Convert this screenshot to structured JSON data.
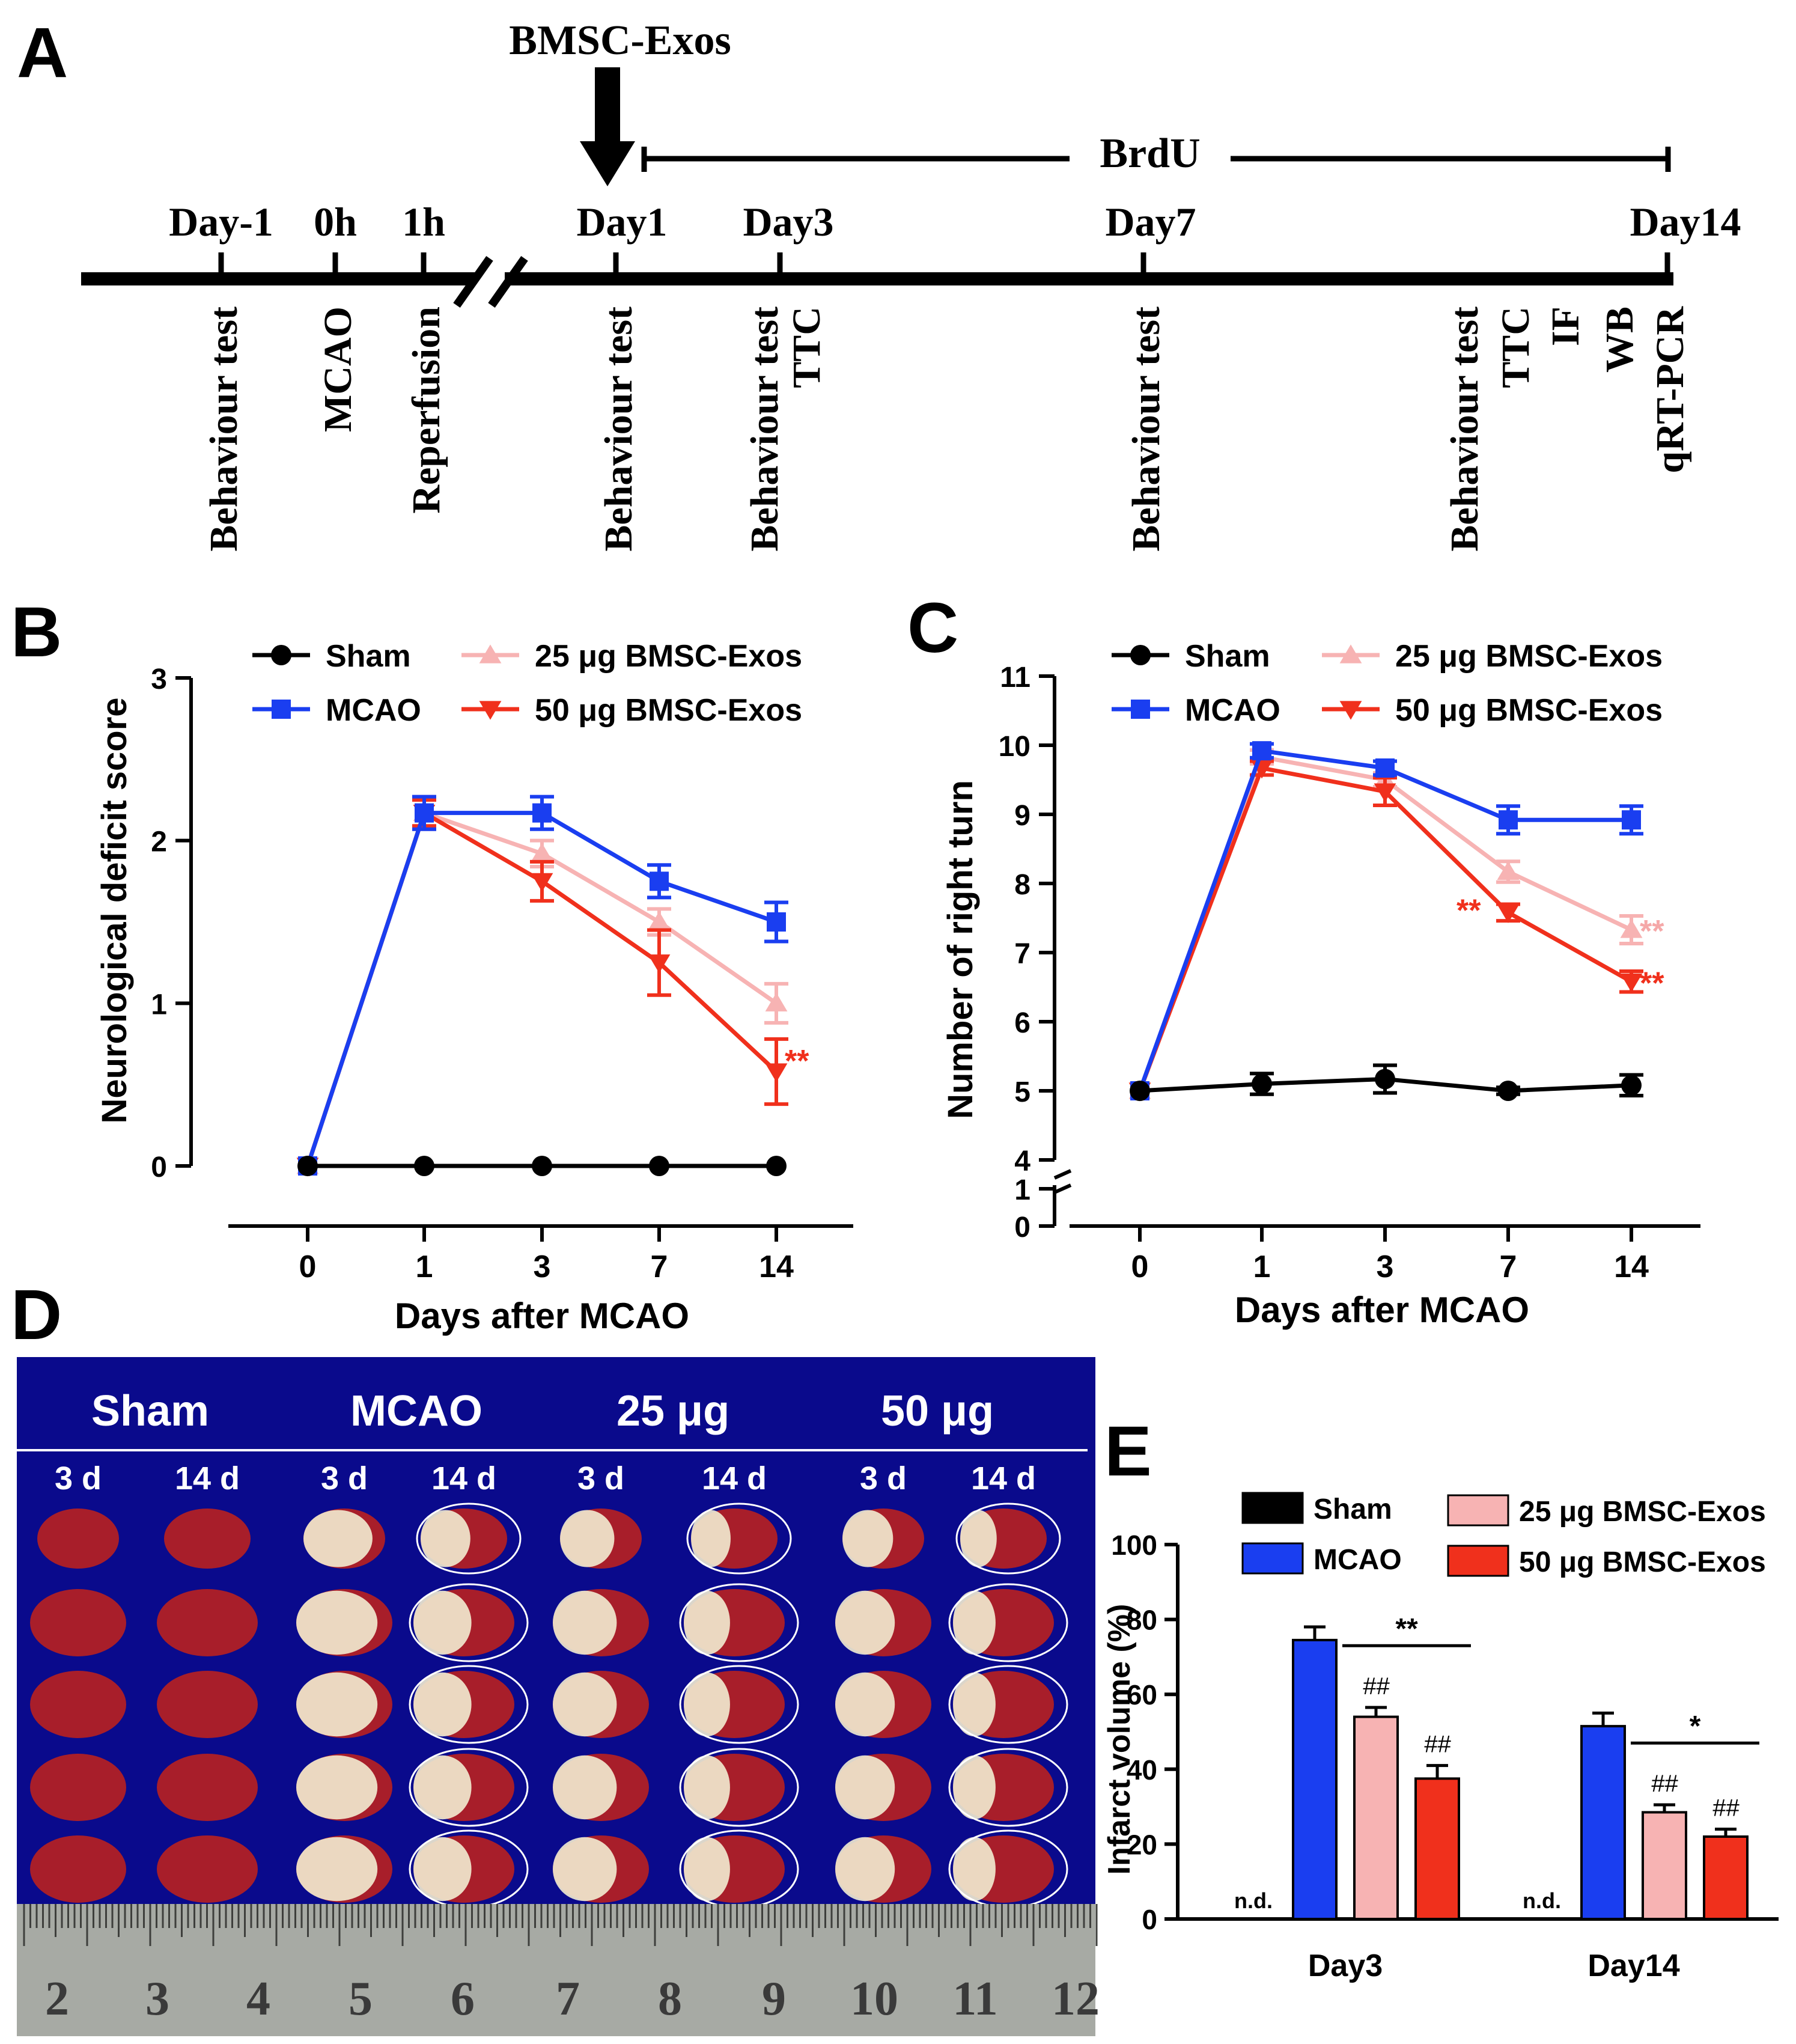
{
  "colors": {
    "sham": "#000000",
    "mcao": "#1a3ef0",
    "exo25": "#f7b3b3",
    "exo50": "#f0301c",
    "sig25": "#f5a8a8",
    "photo_bg": "#0a0a8c",
    "tissue_red": "#a81e2a",
    "tissue_pale": "#f2ecd2"
  },
  "panel_labels": {
    "A": "A",
    "B": "B",
    "C": "C",
    "D": "D",
    "E": "E"
  },
  "timeline": {
    "injection_label": "BMSC-Exos",
    "brdu_label": "BrdU",
    "time_points": [
      {
        "label": "Day-1",
        "events": [
          "Behaviour test"
        ]
      },
      {
        "label": "0h",
        "events": [
          "MCAO"
        ]
      },
      {
        "label": "1h",
        "events": [
          "Reperfusion"
        ]
      },
      {
        "label": "Day1",
        "events": [
          "Behaviour test"
        ]
      },
      {
        "label": "Day3",
        "events": [
          "Behaviour test",
          "TTC"
        ]
      },
      {
        "label": "Day7",
        "events": [
          "Behaviour test"
        ]
      },
      {
        "label": "Day14",
        "events": [
          "Behaviour test",
          "TTC",
          "IF",
          "WB",
          "qRT-PCR"
        ]
      }
    ]
  },
  "legend_lines": [
    "Sham",
    "MCAO",
    "25 μg BMSC-Exos",
    "50 μg BMSC-Exos"
  ],
  "legend_bars": [
    "Sham",
    "MCAO",
    "25 μg BMSC-Exos",
    "50 μg BMSC-Exos"
  ],
  "chart_data": [
    {
      "id": "B",
      "type": "line",
      "title": "",
      "xlabel": "Days after MCAO",
      "ylabel": "Neurological deficit score",
      "categories": [
        "0",
        "1",
        "3",
        "7",
        "14"
      ],
      "ylim": [
        0,
        3
      ],
      "yticks": [
        "0",
        "1",
        "2",
        "3"
      ],
      "series": [
        {
          "name": "Sham",
          "values": [
            0,
            0,
            0,
            0,
            0
          ],
          "errors": [
            0,
            0,
            0,
            0,
            0
          ]
        },
        {
          "name": "MCAO",
          "values": [
            0,
            2.17,
            2.17,
            1.75,
            1.5
          ],
          "errors": [
            0,
            0.1,
            0.1,
            0.1,
            0.12
          ]
        },
        {
          "name": "25 μg BMSC-Exos",
          "values": [
            0,
            2.17,
            1.92,
            1.5,
            1.0
          ],
          "errors": [
            0,
            0.1,
            0.08,
            0.08,
            0.12
          ]
        },
        {
          "name": "50 μg BMSC-Exos",
          "values": [
            0,
            2.17,
            1.75,
            1.25,
            0.58
          ],
          "errors": [
            0,
            0.08,
            0.12,
            0.2,
            0.2
          ]
        }
      ],
      "annotations": [
        {
          "series": "50 μg BMSC-Exos",
          "index": 4,
          "text": "**"
        }
      ]
    },
    {
      "id": "C",
      "type": "line",
      "title": "",
      "xlabel": "Days after MCAO",
      "ylabel": "Number of  right turn",
      "categories": [
        "0",
        "1",
        "3",
        "7",
        "14"
      ],
      "ylim": [
        0,
        11
      ],
      "axis_break": [
        1,
        4
      ],
      "yticks": [
        "0",
        "1",
        "4",
        "5",
        "6",
        "7",
        "8",
        "9",
        "10",
        "11"
      ],
      "series": [
        {
          "name": "Sham",
          "values": [
            5,
            5.1,
            5.17,
            5.0,
            5.08
          ],
          "errors": [
            0,
            0.15,
            0.2,
            0.05,
            0.15
          ]
        },
        {
          "name": "MCAO",
          "values": [
            5,
            9.92,
            9.67,
            8.92,
            8.92
          ],
          "errors": [
            0,
            0.1,
            0.1,
            0.2,
            0.2
          ]
        },
        {
          "name": "25 μg BMSC-Exos",
          "values": [
            5,
            9.83,
            9.5,
            8.17,
            7.33
          ],
          "errors": [
            0,
            0.1,
            0.1,
            0.15,
            0.2
          ]
        },
        {
          "name": "50 μg BMSC-Exos",
          "values": [
            5,
            9.67,
            9.33,
            7.58,
            6.58
          ],
          "errors": [
            0,
            0.1,
            0.2,
            0.12,
            0.15
          ]
        }
      ],
      "annotations": [
        {
          "series": "50 μg BMSC-Exos",
          "index": 3,
          "text": "**"
        },
        {
          "series": "25 μg BMSC-Exos",
          "index": 4,
          "text": "**"
        },
        {
          "series": "50 μg BMSC-Exos",
          "index": 4,
          "text": "**"
        }
      ]
    },
    {
      "id": "E",
      "type": "bar",
      "title": "",
      "xlabel": "",
      "ylabel": "Infarct volume (%)",
      "categories": [
        "Day3",
        "Day14"
      ],
      "ylim": [
        0,
        100
      ],
      "yticks": [
        "0",
        "20",
        "40",
        "60",
        "80",
        "100"
      ],
      "series": [
        {
          "name": "Sham",
          "values": [
            0,
            0
          ],
          "labels": [
            "n.d.",
            "n.d."
          ]
        },
        {
          "name": "MCAO",
          "values": [
            74.5,
            51.5
          ],
          "errors": [
            3.5,
            3.5
          ]
        },
        {
          "name": "25 μg BMSC-Exos",
          "values": [
            54,
            28.5
          ],
          "errors": [
            2.5,
            2
          ]
        },
        {
          "name": "50 μg BMSC-Exos",
          "values": [
            37.5,
            22
          ],
          "errors": [
            3.5,
            2
          ]
        }
      ],
      "hash_marks": "##",
      "significance": [
        {
          "category": "Day3",
          "text": "**"
        },
        {
          "category": "Day14",
          "text": "*"
        }
      ]
    }
  ],
  "photo": {
    "groups": [
      "Sham",
      "MCAO",
      "25 μg",
      "50 μg"
    ],
    "timepoints": [
      "3 d",
      "14 d"
    ],
    "ruler_labels": [
      "2",
      "3",
      "4",
      "5",
      "6",
      "7",
      "8",
      "9",
      "10",
      "11",
      "12"
    ]
  }
}
